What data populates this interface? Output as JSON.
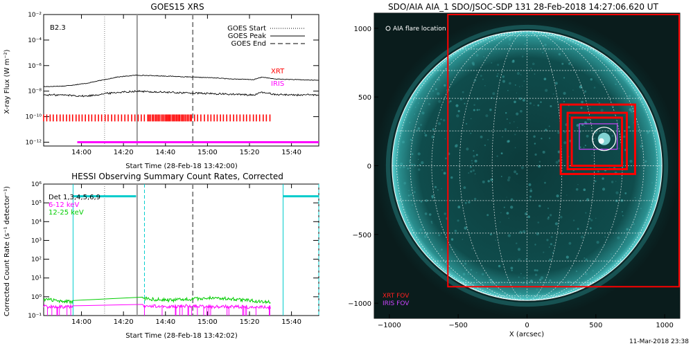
{
  "chart_data": [
    {
      "type": "line",
      "title": "GOES15 XRS",
      "xlabel": "Start Time (28-Feb-18 13:42:00)",
      "ylabel": "X-ray Flux (W m⁻²)",
      "x_tick_labels": [
        "14:00",
        "14:20",
        "14:40",
        "15:00",
        "15:20",
        "15:40"
      ],
      "x_ticks_min": [
        18,
        38,
        58,
        78,
        98,
        118
      ],
      "xlim_min": [
        0,
        131
      ],
      "y_tick_labels": [
        "10⁻²",
        "10⁻⁴",
        "10⁻⁶",
        "10⁻⁸",
        "10⁻¹⁰",
        "10⁻¹²"
      ],
      "y_ticks_log": [
        -2,
        -4,
        -6,
        -8,
        -10,
        -12
      ],
      "ylim_log": [
        -12.3,
        -2
      ],
      "scale": "log",
      "annotation": "B2.3",
      "legend": [
        {
          "label": "GOES Start",
          "style": "dotted"
        },
        {
          "label": "GOES Peak",
          "style": "solid"
        },
        {
          "label": "GOES End",
          "style": "dashed"
        }
      ],
      "event_lines_min": {
        "start": 29,
        "peak": 44.5,
        "end": 71
      },
      "series": [
        {
          "name": "long",
          "color": "#000000",
          "x": [
            0,
            10,
            20,
            29,
            35,
            44,
            50,
            60,
            70,
            80,
            90,
            100,
            104,
            110,
            120,
            131
          ],
          "y": [
            -7.65,
            -7.6,
            -7.4,
            -7.1,
            -6.9,
            -6.75,
            -6.78,
            -6.83,
            -6.9,
            -6.95,
            -7.05,
            -7.1,
            -6.9,
            -7.05,
            -7.1,
            -7.15
          ]
        },
        {
          "name": "short",
          "color": "#000000",
          "x": [
            0,
            10,
            20,
            29,
            35,
            44,
            50,
            60,
            70,
            80,
            90,
            100,
            104,
            110,
            120,
            131
          ],
          "y": [
            -8.3,
            -8.3,
            -8.4,
            -8.2,
            -8.1,
            -8.0,
            -8.05,
            -8.1,
            -8.15,
            -8.2,
            -8.25,
            -8.3,
            -8.1,
            -8.25,
            -8.3,
            -8.3
          ]
        }
      ],
      "coverage": [
        {
          "label": "XRT",
          "color": "#ff0000",
          "start_min": 0,
          "end_min": 108
        },
        {
          "label": "IRIS",
          "color": "#ff00ff",
          "start_min": 16,
          "end_min": 131
        }
      ]
    },
    {
      "type": "line",
      "title": "HESSI Observing Summary Count Rates, Corrected",
      "xlabel": "Start Time (28-Feb-18 13:42:02)",
      "ylabel": "Corrected Count Rate (s⁻¹ detector⁻¹)",
      "x_tick_labels": [
        "14:00",
        "14:20",
        "14:40",
        "15:00",
        "15:20",
        "15:40"
      ],
      "x_ticks_min": [
        18,
        38,
        58,
        78,
        98,
        118
      ],
      "xlim_min": [
        0,
        131
      ],
      "y_tick_labels": [
        "10⁶",
        "10⁵",
        "10⁴",
        "10³",
        "10²",
        "10¹",
        "10⁰",
        "10⁻¹"
      ],
      "y_ticks_log": [
        6,
        5,
        4,
        3,
        2,
        1,
        0,
        -1
      ],
      "ylim_log": [
        -1,
        6
      ],
      "scale": "log",
      "legend": [
        {
          "label": "Det 1,3,4,5,6,9",
          "color": "#000000"
        },
        {
          "label": "6-12 keV",
          "color": "#ff00ff"
        },
        {
          "label": "12-25 keV",
          "color": "#00cc00"
        }
      ],
      "event_lines_min": {
        "start": 29,
        "peak": 44.5,
        "end": 71
      },
      "attenuator": {
        "color": "#00cccc",
        "segments": [
          [
            14,
            44,
            5.35
          ],
          [
            114,
            131,
            5.35
          ]
        ]
      },
      "series": [
        {
          "name": "6-12 keV",
          "color": "#ff00ff",
          "x": [
            0,
            5,
            10,
            14,
            15,
            30,
            44,
            47,
            50,
            60,
            70,
            80,
            90,
            100,
            108,
            110
          ],
          "y": [
            0.3,
            0.3,
            0.28,
            0.3,
            null,
            null,
            null,
            0.35,
            0.32,
            0.3,
            0.32,
            0.3,
            0.3,
            0.28,
            0.28,
            null
          ]
        },
        {
          "name": "12-25 keV",
          "color": "#00cc00",
          "x": [
            0,
            5,
            10,
            14,
            15,
            30,
            44,
            47,
            50,
            60,
            70,
            80,
            90,
            100,
            108,
            110
          ],
          "y": [
            0.75,
            0.65,
            0.55,
            0.55,
            null,
            null,
            null,
            0.9,
            0.75,
            0.65,
            0.75,
            0.9,
            0.75,
            0.6,
            0.5,
            null
          ]
        }
      ]
    },
    {
      "type": "scatter",
      "title": "SDO/AIA AIA_1 SDO/JSOC-SDP 131 28-Feb-2018 14:27:06.620 UT",
      "xlabel": "X (arcsec)",
      "ylabel": "",
      "x_tick_labels": [
        "−1000",
        "−500",
        "0",
        "500",
        "1000"
      ],
      "x_ticks": [
        -1000,
        -500,
        0,
        500,
        1000
      ],
      "xlim": [
        -1110,
        1110
      ],
      "y_tick_labels": [
        "1000",
        "500",
        "0",
        "−500",
        "−1000"
      ],
      "y_ticks": [
        1000,
        500,
        0,
        -500,
        -1000
      ],
      "ylim": [
        -1110,
        1110
      ],
      "solar_radius_arcsec": 980,
      "legend": [
        {
          "label": "AIA flare location",
          "color": "#ffffff"
        },
        {
          "label": "XRT FOV",
          "color": "#ff0000"
        },
        {
          "label": "IRIS FOV",
          "color": "#cc44ff"
        }
      ],
      "flare_location": {
        "x": 560,
        "y": 195,
        "r": 85
      },
      "xrt_fov": [
        {
          "x0": -575,
          "x1": 1105,
          "y0": -880,
          "y1": 1100
        },
        {
          "x0": 245,
          "x1": 785,
          "y0": -60,
          "y1": 445
        },
        {
          "x0": 295,
          "x1": 725,
          "y0": -25,
          "y1": 385
        },
        {
          "x0": 325,
          "x1": 690,
          "y0": 0,
          "y1": 350
        }
      ],
      "iris_fov": [
        {
          "x0": 380,
          "x1": 655,
          "y0": 120,
          "y1": 305
        }
      ],
      "timestamp": "11-Mar-2018 23:38"
    }
  ]
}
